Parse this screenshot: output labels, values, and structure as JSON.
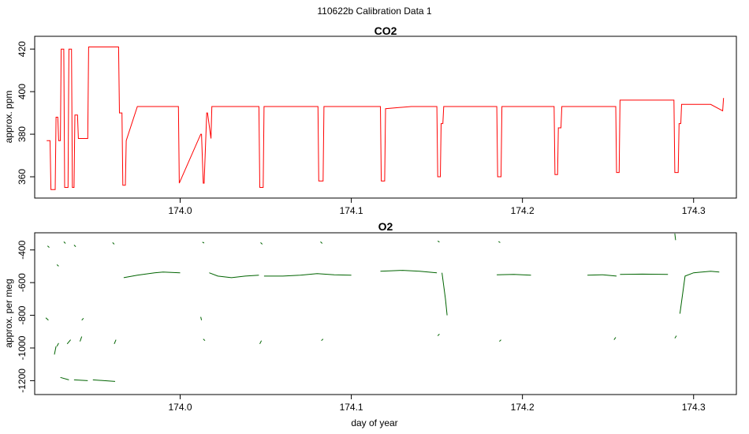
{
  "figure_title": "110622b   Calibration Data 1",
  "chart_data": [
    {
      "type": "line",
      "title": "CO2",
      "xlabel": "",
      "ylabel": "approx. ppm",
      "xlim": [
        173.915,
        174.325
      ],
      "ylim": [
        350,
        426
      ],
      "x_ticks": [
        174.0,
        174.1,
        174.2,
        174.3
      ],
      "x_tick_labels": [
        "174.0",
        "174.1",
        "174.2",
        "174.3"
      ],
      "y_ticks": [
        360,
        380,
        400,
        420
      ],
      "y_tick_labels": [
        "360",
        "380",
        "400",
        "420"
      ],
      "grid": false,
      "series": [
        {
          "color": "#ff0000",
          "x": [
            173.922,
            173.924,
            173.9245,
            173.927,
            173.9275,
            173.9285,
            173.929,
            173.93,
            173.9305,
            173.932,
            173.9325,
            173.9345,
            173.935,
            173.9365,
            173.937,
            173.938,
            173.9385,
            173.94,
            173.9405,
            173.946,
            173.9465,
            173.9475,
            173.948,
            173.949,
            173.9495,
            173.9525,
            173.953,
            173.964,
            173.9645,
            173.966,
            173.9665,
            173.968,
            173.9685,
            173.975,
            173.985,
            173.999,
            173.9995,
            174.012,
            174.0125,
            174.0135,
            174.014,
            174.0155,
            174.016,
            174.018,
            174.0185,
            174.03,
            174.046,
            174.0465,
            174.0485,
            174.049,
            174.065,
            174.0805,
            174.081,
            174.0835,
            174.084,
            174.1,
            174.117,
            174.1175,
            174.1195,
            174.12,
            174.135,
            174.15,
            174.1505,
            174.152,
            174.1525,
            174.1535,
            174.154,
            174.17,
            174.185,
            174.1855,
            174.1875,
            174.188,
            174.2,
            174.2185,
            174.219,
            174.2205,
            174.221,
            174.2225,
            174.223,
            174.24,
            174.2545,
            174.255,
            174.2565,
            174.257,
            174.275,
            174.2885,
            174.289,
            174.291,
            174.2915,
            174.2925,
            174.293,
            174.3,
            174.31,
            174.317,
            174.3175
          ],
          "y": [
            377,
            377,
            354,
            354,
            388,
            388,
            377,
            377,
            420,
            420,
            355,
            355,
            420,
            420,
            355,
            355,
            389,
            389,
            378,
            378,
            421,
            421,
            421,
            421,
            421,
            421,
            421,
            421,
            390,
            390,
            356,
            356,
            377,
            393,
            393,
            393,
            357,
            380,
            380,
            357,
            357,
            390,
            390,
            378,
            393,
            393,
            393,
            355,
            355,
            393,
            393,
            393,
            358,
            358,
            393,
            393,
            393,
            358,
            358,
            392,
            393,
            393,
            360,
            360,
            385,
            385,
            393,
            393,
            393,
            360,
            360,
            393,
            393,
            393,
            361,
            361,
            383,
            383,
            393,
            393,
            393,
            362,
            362,
            396,
            396,
            396,
            362,
            362,
            385,
            385,
            394,
            394,
            394,
            391,
            397
          ]
        }
      ]
    },
    {
      "type": "line",
      "title": "O2",
      "xlabel": "day of year",
      "ylabel": "approx. per meg",
      "xlim": [
        173.915,
        174.325
      ],
      "ylim": [
        -1285,
        -295
      ],
      "x_ticks": [
        174.0,
        174.1,
        174.2,
        174.3
      ],
      "x_tick_labels": [
        "174.0",
        "174.1",
        "174.2",
        "174.3"
      ],
      "y_ticks": [
        -1200,
        -1000,
        -800,
        -600,
        -400
      ],
      "y_tick_labels": [
        "-1200",
        "-1000",
        "-800",
        "-600",
        "-400"
      ],
      "grid": false,
      "series": [
        {
          "color": "#006400",
          "x": [
            173.967,
            173.975,
            173.985,
            173.99,
            174.0
          ],
          "y": [
            -570,
            -555,
            -540,
            -535,
            -540
          ]
        },
        {
          "color": "#006400",
          "x": [
            174.017,
            174.022,
            174.03,
            174.038,
            174.046
          ],
          "y": [
            -540,
            -560,
            -570,
            -560,
            -555
          ]
        },
        {
          "color": "#006400",
          "x": [
            174.049,
            174.06,
            174.07,
            174.08,
            174.09,
            174.1
          ],
          "y": [
            -560,
            -560,
            -555,
            -545,
            -552,
            -555
          ]
        },
        {
          "color": "#006400",
          "x": [
            174.117,
            174.13,
            174.14,
            174.15
          ],
          "y": [
            -530,
            -525,
            -530,
            -540
          ]
        },
        {
          "color": "#006400",
          "x": [
            174.153,
            174.155,
            174.156
          ],
          "y": [
            -540,
            -700,
            -800
          ]
        },
        {
          "color": "#006400",
          "x": [
            174.185,
            174.195,
            174.205
          ],
          "y": [
            -552,
            -550,
            -555
          ]
        },
        {
          "color": "#006400",
          "x": [
            174.238,
            174.247,
            174.255
          ],
          "y": [
            -555,
            -552,
            -560
          ]
        },
        {
          "color": "#006400",
          "x": [
            174.257,
            174.27,
            174.285
          ],
          "y": [
            -550,
            -548,
            -550
          ]
        },
        {
          "color": "#006400",
          "x": [
            174.292,
            174.295,
            174.3,
            174.31,
            174.315
          ],
          "y": [
            -790,
            -560,
            -540,
            -530,
            -535
          ]
        },
        {
          "color": "#006400",
          "x": [
            173.93,
            173.935
          ],
          "y": [
            -1180,
            -1195
          ]
        },
        {
          "color": "#006400",
          "x": [
            173.938,
            173.946
          ],
          "y": [
            -1195,
            -1200
          ]
        },
        {
          "color": "#006400",
          "x": [
            173.949,
            173.962
          ],
          "y": [
            -1195,
            -1205
          ]
        },
        {
          "color": "#006400",
          "x": [
            173.9215,
            173.923
          ],
          "y": [
            -815,
            -830
          ]
        },
        {
          "color": "#006400",
          "x": [
            173.9265,
            173.9275
          ],
          "y": [
            -1040,
            -990
          ]
        },
        {
          "color": "#006400",
          "x": [
            173.928,
            173.929
          ],
          "y": [
            -990,
            -970
          ]
        },
        {
          "color": "#006400",
          "x": [
            173.934,
            173.936
          ],
          "y": [
            -975,
            -950
          ]
        },
        {
          "color": "#006400",
          "x": [
            173.9425,
            173.9435
          ],
          "y": [
            -830,
            -818
          ]
        },
        {
          "color": "#006400",
          "x": [
            173.9415,
            173.9425
          ],
          "y": [
            -960,
            -930
          ]
        },
        {
          "color": "#006400",
          "x": [
            173.9615,
            173.9625
          ],
          "y": [
            -975,
            -950
          ]
        },
        {
          "color": "#006400",
          "x": [
            174.012,
            174.0125
          ],
          "y": [
            -810,
            -830
          ]
        },
        {
          "color": "#006400",
          "x": [
            174.0135,
            174.0145
          ],
          "y": [
            -945,
            -955
          ]
        },
        {
          "color": "#006400",
          "x": [
            174.0465,
            174.0475
          ],
          "y": [
            -975,
            -955
          ]
        },
        {
          "color": "#006400",
          "x": [
            174.0825,
            174.0835
          ],
          "y": [
            -955,
            -945
          ]
        },
        {
          "color": "#006400",
          "x": [
            174.1505,
            174.1515
          ],
          "y": [
            -925,
            -915
          ]
        },
        {
          "color": "#006400",
          "x": [
            174.1865,
            174.1875
          ],
          "y": [
            -960,
            -950
          ]
        },
        {
          "color": "#006400",
          "x": [
            174.2535,
            174.2545
          ],
          "y": [
            -950,
            -935
          ]
        },
        {
          "color": "#006400",
          "x": [
            174.289,
            174.29
          ],
          "y": [
            -940,
            -925
          ]
        },
        {
          "color": "#006400",
          "x": [
            173.9225,
            173.9235
          ],
          "y": [
            -375,
            -385
          ]
        },
        {
          "color": "#006400",
          "x": [
            173.928,
            173.929
          ],
          "y": [
            -490,
            -500
          ]
        },
        {
          "color": "#006400",
          "x": [
            173.932,
            173.933
          ],
          "y": [
            -350,
            -360
          ]
        },
        {
          "color": "#006400",
          "x": [
            173.938,
            173.939
          ],
          "y": [
            -370,
            -380
          ]
        },
        {
          "color": "#006400",
          "x": [
            173.9605,
            173.9615
          ],
          "y": [
            -355,
            -365
          ]
        },
        {
          "color": "#006400",
          "x": [
            174.013,
            174.014
          ],
          "y": [
            -352,
            -358
          ]
        },
        {
          "color": "#006400",
          "x": [
            174.047,
            174.048
          ],
          "y": [
            -355,
            -365
          ]
        },
        {
          "color": "#006400",
          "x": [
            174.082,
            174.083
          ],
          "y": [
            -350,
            -360
          ]
        },
        {
          "color": "#006400",
          "x": [
            174.1505,
            174.1515
          ],
          "y": [
            -345,
            -352
          ]
        },
        {
          "color": "#006400",
          "x": [
            174.186,
            174.187
          ],
          "y": [
            -348,
            -355
          ]
        },
        {
          "color": "#006400",
          "x": [
            174.289,
            174.2895
          ],
          "y": [
            -300,
            -340
          ]
        }
      ]
    }
  ]
}
